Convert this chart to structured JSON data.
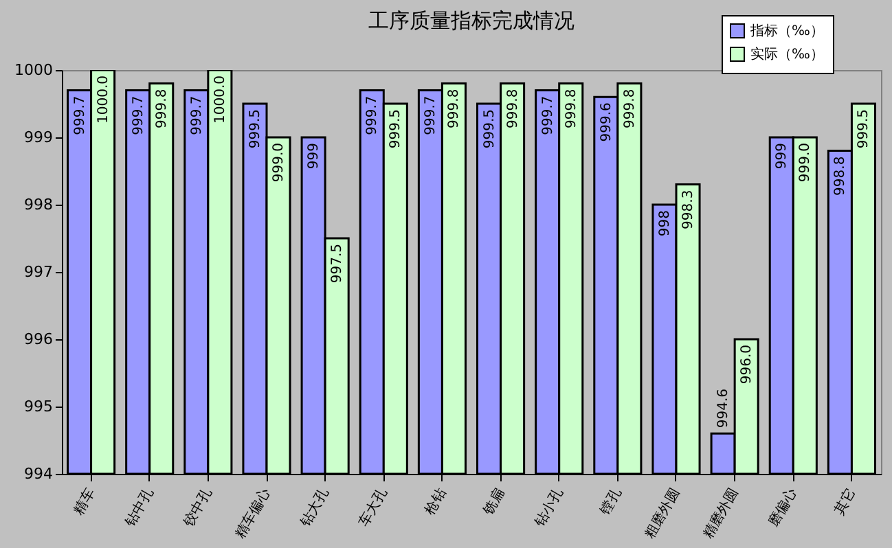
{
  "chart_data": {
    "type": "bar",
    "title": "工序质量指标完成情况",
    "categories": [
      "精车",
      "钻中孔",
      "铰中孔",
      "精车偏心",
      "钻大孔",
      "车大孔",
      "枪钻",
      "铣扁",
      "钻小孔",
      "镗孔",
      "粗磨外圆",
      "精磨外圆",
      "磨偏心",
      "其它"
    ],
    "series": [
      {
        "name": "指标（‰）",
        "color": "#9999ff",
        "values": [
          999.7,
          999.7,
          999.7,
          999.5,
          999,
          999.7,
          999.7,
          999.5,
          999.7,
          999.6,
          998,
          994.6,
          999,
          998.8
        ],
        "value_labels": [
          "999.7",
          "999.7",
          "999.7",
          "999.5",
          "999",
          "999.7",
          "999.7",
          "999.5",
          "999.7",
          "999.6",
          "998",
          "994.6",
          "999",
          "998.8"
        ]
      },
      {
        "name": "实际（‰）",
        "color": "#ccffcc",
        "values": [
          1000.0,
          999.8,
          1000.0,
          999.0,
          997.5,
          999.5,
          999.8,
          999.8,
          999.8,
          999.8,
          998.3,
          996.0,
          999.0,
          999.5
        ],
        "value_labels": [
          "1000.0",
          "999.8",
          "1000.0",
          "999.0",
          "997.5",
          "999.5",
          "999.8",
          "999.8",
          "999.8",
          "999.8",
          "998.3",
          "996.0",
          "999.0",
          "999.5"
        ]
      }
    ],
    "ylim": [
      994,
      1000
    ],
    "yticks": [
      994,
      995,
      996,
      997,
      998,
      999,
      {
        "value": 1000,
        "label": "1000"
      }
    ],
    "grid": false,
    "legend": "top right"
  }
}
